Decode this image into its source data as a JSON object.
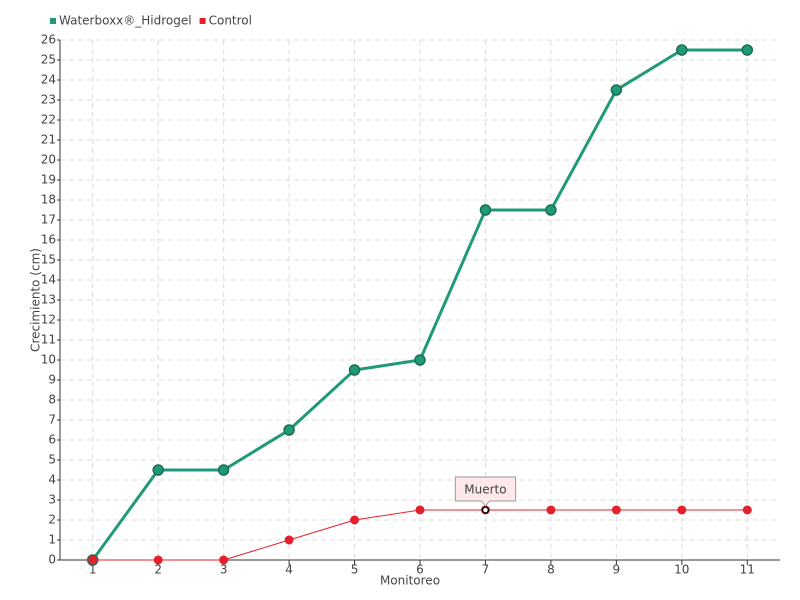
{
  "chart_data": {
    "type": "line",
    "xlabel": "Monitoreo",
    "ylabel": "Crecimiento (cm)",
    "categories": [
      "1",
      "2",
      "3",
      "4",
      "5",
      "6",
      "7",
      "8",
      "9",
      "10",
      "11"
    ],
    "series": [
      {
        "name": "Waterboxx®_Hidrogel",
        "color": "#1f9a78",
        "values": [
          0,
          4.5,
          4.5,
          6.5,
          9.5,
          10,
          17.5,
          17.5,
          23.5,
          25.5,
          25.5
        ]
      },
      {
        "name": "Control",
        "color": "#e3202c",
        "values": [
          0,
          0,
          0,
          1,
          2,
          2.5,
          2.5,
          2.5,
          2.5,
          2.5,
          2.5
        ]
      }
    ],
    "annotations": [
      {
        "text": "Muerto",
        "x": "7",
        "y": 2.5
      }
    ],
    "ylim": [
      0,
      26
    ],
    "yticks": [
      0,
      1,
      2,
      3,
      4,
      5,
      6,
      7,
      8,
      9,
      10,
      11,
      12,
      13,
      14,
      15,
      16,
      17,
      18,
      19,
      20,
      21,
      22,
      23,
      24,
      25,
      26
    ],
    "grid": true,
    "legend": "top-left"
  }
}
